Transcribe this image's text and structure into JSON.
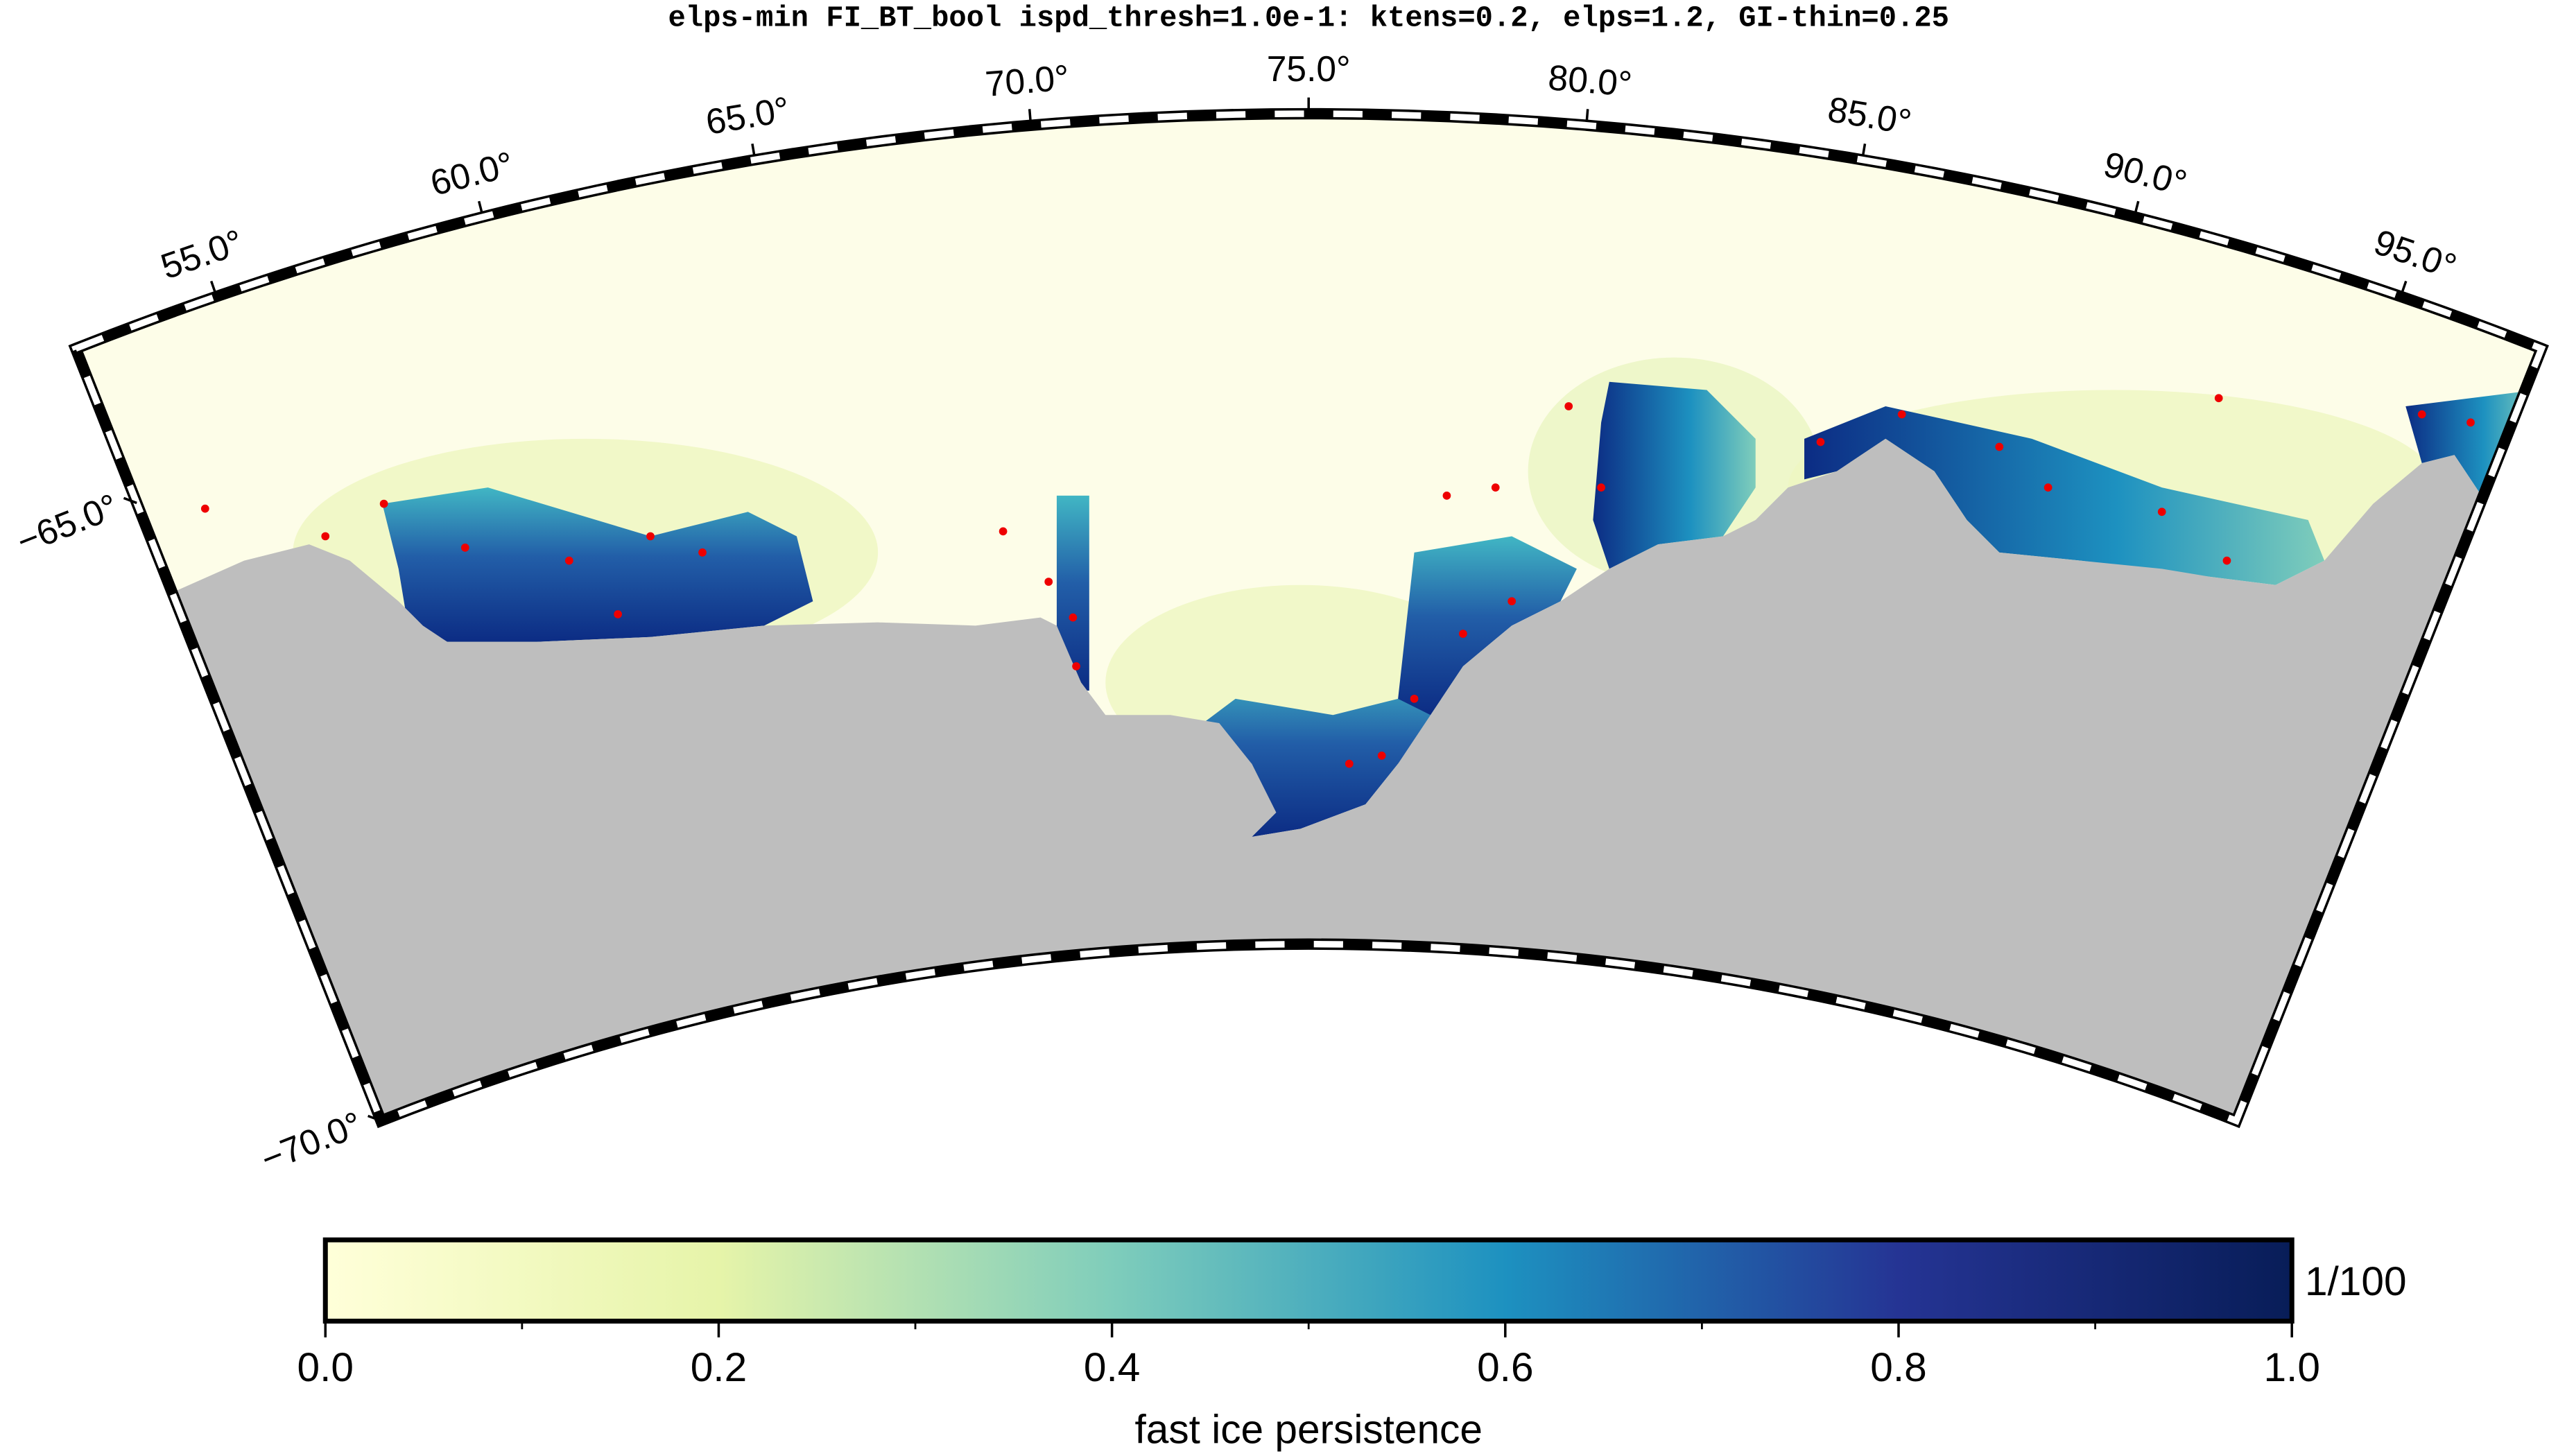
{
  "chart_data": {
    "type": "map",
    "title": "elps-min FI_BT_bool ispd_thresh=1.0e-1: ktens=0.2, elps=1.2, GI-thin=0.25",
    "xlim": [
      52.3,
      97.7
    ],
    "ylim": [
      -70,
      -63.75
    ],
    "xticks": [
      {
        "value": 55,
        "label": "55.0°"
      },
      {
        "value": 60,
        "label": "60.0°"
      },
      {
        "value": 65,
        "label": "65.0°"
      },
      {
        "value": 70,
        "label": "70.0°"
      },
      {
        "value": 75,
        "label": "75.0°"
      },
      {
        "value": 80,
        "label": "80.0°"
      },
      {
        "value": 85,
        "label": "85.0°"
      },
      {
        "value": 90,
        "label": "90.0°"
      },
      {
        "value": 95,
        "label": "95.0°"
      }
    ],
    "yticks": [
      {
        "value": -65,
        "label": "−65.0°"
      },
      {
        "value": -70,
        "label": "−70.0°"
      }
    ],
    "colorbar": {
      "label": "fast ice persistence",
      "unit": "1/100",
      "clim": [
        0,
        1
      ],
      "colormap": [
        "#ffffd9",
        "#e6f4a9",
        "#7fcdbb",
        "#1d91c0",
        "#253494",
        "#081d58"
      ],
      "ticks": [
        {
          "value": 0,
          "label": "0.0"
        },
        {
          "value": 0.2,
          "label": "0.2"
        },
        {
          "value": 0.4,
          "label": "0.4"
        },
        {
          "value": 0.6,
          "label": "0.6"
        },
        {
          "value": 0.8,
          "label": "0.8"
        },
        {
          "value": 1,
          "label": "1.0"
        }
      ],
      "minor_ticks": [
        0.1,
        0.3,
        0.5,
        0.7,
        0.9
      ]
    }
  }
}
